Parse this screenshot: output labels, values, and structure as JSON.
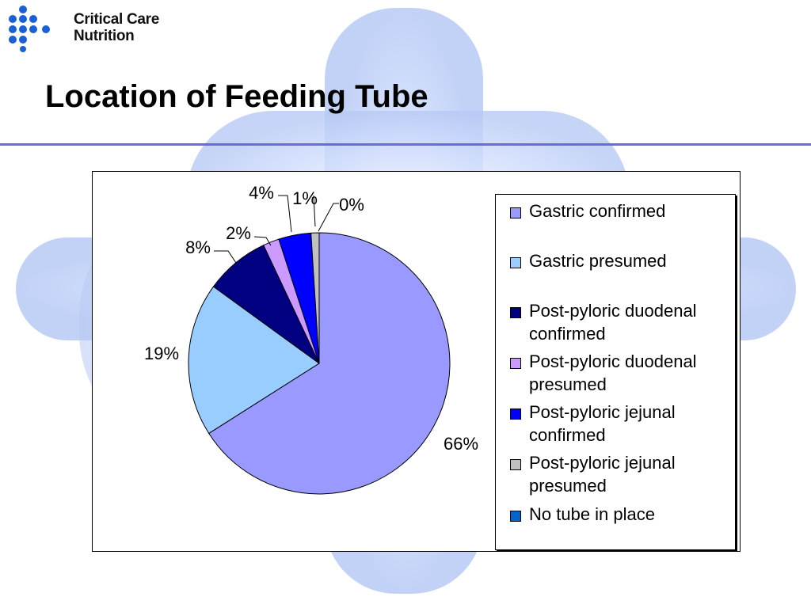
{
  "brand": {
    "line1": "Critical Care",
    "line2": "Nutrition",
    "logo_icon": "molecule-logo-icon",
    "logo_color": "#1a5fd6"
  },
  "slide": {
    "title": "Location of Feeding Tube",
    "rule_color": "#6a6ad8"
  },
  "chart_data": {
    "type": "pie",
    "title": "",
    "legend_position": "right",
    "start": "12 o'clock, clockwise",
    "slices": [
      {
        "name": "Gastric confirmed",
        "value": 66,
        "label": "66%",
        "color": "#9999ff"
      },
      {
        "name": "Gastric presumed",
        "value": 19,
        "label": "19%",
        "color": "#99ccff"
      },
      {
        "name": "Post-pyloric duodenal confirmed",
        "value": 8,
        "label": "8%",
        "color": "#000080"
      },
      {
        "name": "Post-pyloric duodenal presumed",
        "value": 2,
        "label": "2%",
        "color": "#cc99ff"
      },
      {
        "name": "Post-pyloric jejunal confirmed",
        "value": 4,
        "label": "4%",
        "color": "#0000ff"
      },
      {
        "name": "Post-pyloric jejunal presumed",
        "value": 1,
        "label": "1%",
        "color": "#c0c0c0"
      },
      {
        "name": "No tube in place",
        "value": 0,
        "label": "0%",
        "color": "#0066cc"
      }
    ]
  }
}
